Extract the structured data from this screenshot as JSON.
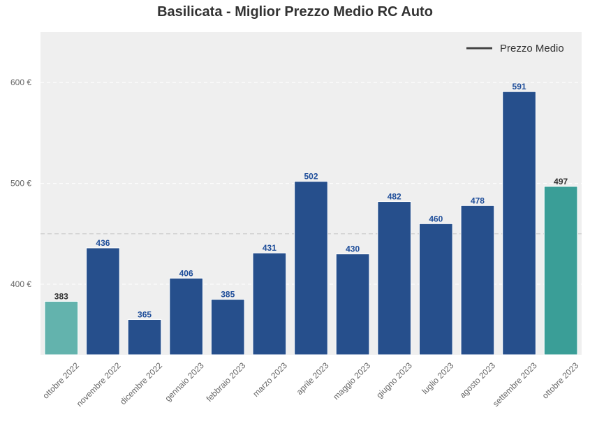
{
  "chart_data": {
    "type": "bar",
    "title": "Basilicata - Miglior Prezzo Medio RC Auto",
    "xlabel": "",
    "ylabel": "",
    "categories": [
      "ottobre 2022",
      "novembre 2022",
      "dicembre 2022",
      "gennaio 2023",
      "febbraio 2023",
      "marzo 2023",
      "aprile 2023",
      "maggio 2023",
      "giugno 2023",
      "luglio 2023",
      "agosto 2023",
      "settembre 2023",
      "ottobre 2023"
    ],
    "values": [
      383,
      436,
      365,
      406,
      385,
      431,
      502,
      430,
      482,
      460,
      478,
      591,
      497
    ],
    "value_labels": [
      "383",
      "436",
      "365",
      "406",
      "385",
      "431",
      "502",
      "430",
      "482",
      "460",
      "478",
      "591",
      "497"
    ],
    "bar_colors": [
      "#63b3ad",
      "#264f8c",
      "#264f8c",
      "#264f8c",
      "#264f8c",
      "#264f8c",
      "#264f8c",
      "#264f8c",
      "#264f8c",
      "#264f8c",
      "#264f8c",
      "#264f8c",
      "#3a9e97"
    ],
    "label_colors": [
      "#333333",
      "#1f4e9a",
      "#1f4e9a",
      "#1f4e9a",
      "#1f4e9a",
      "#1f4e9a",
      "#1f4e9a",
      "#1f4e9a",
      "#1f4e9a",
      "#1f4e9a",
      "#1f4e9a",
      "#1f4e9a",
      "#333333"
    ],
    "ylim": [
      330,
      650
    ],
    "yticks": [
      400,
      500,
      600
    ],
    "ytick_labels": [
      "400 €",
      "500 €",
      "600 €"
    ],
    "reference_line": {
      "name": "Prezzo Medio",
      "value": 450,
      "color": "#cccccc",
      "style": "dashed"
    },
    "legend": {
      "entries": [
        "Prezzo Medio"
      ],
      "position": "top-right",
      "line_color": "#444444"
    },
    "grid": true,
    "background": "#efefef"
  }
}
